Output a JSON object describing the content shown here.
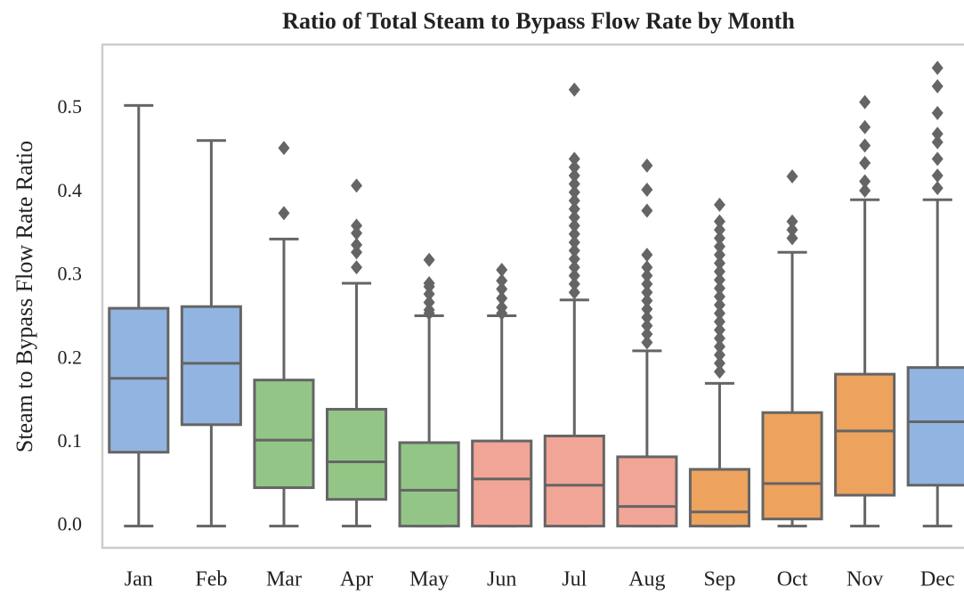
{
  "chart_data": {
    "type": "box",
    "title": "Ratio of Total Steam to Bypass Flow Rate by Month",
    "y_label": "Steam to Bypass Flow Rate Ratio",
    "categories": [
      "Jan",
      "Feb",
      "Mar",
      "Apr",
      "May",
      "Jun",
      "Jul",
      "Aug",
      "Sep",
      "Oct",
      "Nov",
      "Dec"
    ],
    "ylim": [
      -0.026,
      0.577
    ],
    "yticks": [
      {
        "value": 0,
        "label": "0.0"
      },
      0.1,
      0.2,
      0.3,
      0.4,
      0.5
    ],
    "grid": false,
    "boxes": [
      {
        "whisker_low": 0,
        "q1": 0.0885,
        "median": 0.177,
        "q3": 0.261,
        "whisker_high": 0.504,
        "outliers": [],
        "color": "#92b4e0"
      },
      {
        "whisker_low": 0,
        "q1": 0.1215,
        "median": 0.195,
        "q3": 0.263,
        "whisker_high": 0.462,
        "outliers": [],
        "color": "#92b4e0"
      },
      {
        "whisker_low": 0,
        "q1": 0.046,
        "median": 0.103,
        "q3": 0.175,
        "whisker_high": 0.344,
        "outliers": [
          0.453,
          0.375
        ],
        "color": "#93c686"
      },
      {
        "whisker_low": 0,
        "q1": 0.032,
        "median": 0.077,
        "q3": 0.14,
        "whisker_high": 0.291,
        "outliers": [
          0.408,
          0.36,
          0.351,
          0.337,
          0.328,
          0.31
        ],
        "color": "#93c686"
      },
      {
        "whisker_low": 0,
        "q1": 0,
        "median": 0.043,
        "q3": 0.1,
        "whisker_high": 0.252,
        "outliers": [
          0.319,
          0.291,
          0.287,
          0.278,
          0.268,
          0.259,
          0.255
        ],
        "color": "#93c686"
      },
      {
        "whisker_low": 0,
        "q1": 0,
        "median": 0.0565,
        "q3": 0.102,
        "whisker_high": 0.252,
        "outliers": [
          0.307,
          0.294,
          0.284,
          0.273,
          0.262,
          0.255
        ],
        "color": "#f1a596"
      },
      {
        "whisker_low": 0,
        "q1": 0,
        "median": 0.049,
        "q3": 0.108,
        "whisker_high": 0.271,
        "outliers": [
          0.523,
          0.44,
          0.43,
          0.42,
          0.41,
          0.4,
          0.39,
          0.38,
          0.37,
          0.36,
          0.35,
          0.34,
          0.33,
          0.32,
          0.31,
          0.3,
          0.29,
          0.28
        ],
        "color": "#f1a596"
      },
      {
        "whisker_low": 0,
        "q1": 0,
        "median": 0.0235,
        "q3": 0.083,
        "whisker_high": 0.21,
        "outliers": [
          0.432,
          0.403,
          0.378,
          0.325,
          0.31,
          0.3,
          0.29,
          0.28,
          0.27,
          0.26,
          0.25,
          0.24,
          0.23,
          0.22
        ],
        "color": "#f1a596"
      },
      {
        "whisker_low": 0,
        "q1": 0,
        "median": 0.017,
        "q3": 0.068,
        "whisker_high": 0.171,
        "outliers": [
          0.385,
          0.365,
          0.355,
          0.345,
          0.335,
          0.325,
          0.315,
          0.305,
          0.295,
          0.285,
          0.275,
          0.265,
          0.255,
          0.245,
          0.235,
          0.225,
          0.215,
          0.205,
          0.195,
          0.185
        ],
        "color": "#eda25e"
      },
      {
        "whisker_low": 0,
        "q1": 0.0085,
        "median": 0.051,
        "q3": 0.136,
        "whisker_high": 0.328,
        "outliers": [
          0.419,
          0.365,
          0.355,
          0.345
        ],
        "color": "#eda25e"
      },
      {
        "whisker_low": 0,
        "q1": 0.037,
        "median": 0.114,
        "q3": 0.182,
        "whisker_high": 0.391,
        "outliers": [
          0.508,
          0.478,
          0.456,
          0.435,
          0.413,
          0.402
        ],
        "color": "#eda25e"
      },
      {
        "whisker_low": 0,
        "q1": 0.049,
        "median": 0.125,
        "q3": 0.19,
        "whisker_high": 0.391,
        "outliers": [
          0.549,
          0.527,
          0.495,
          0.47,
          0.46,
          0.44,
          0.42,
          0.405
        ],
        "color": "#92b4e0"
      }
    ]
  }
}
